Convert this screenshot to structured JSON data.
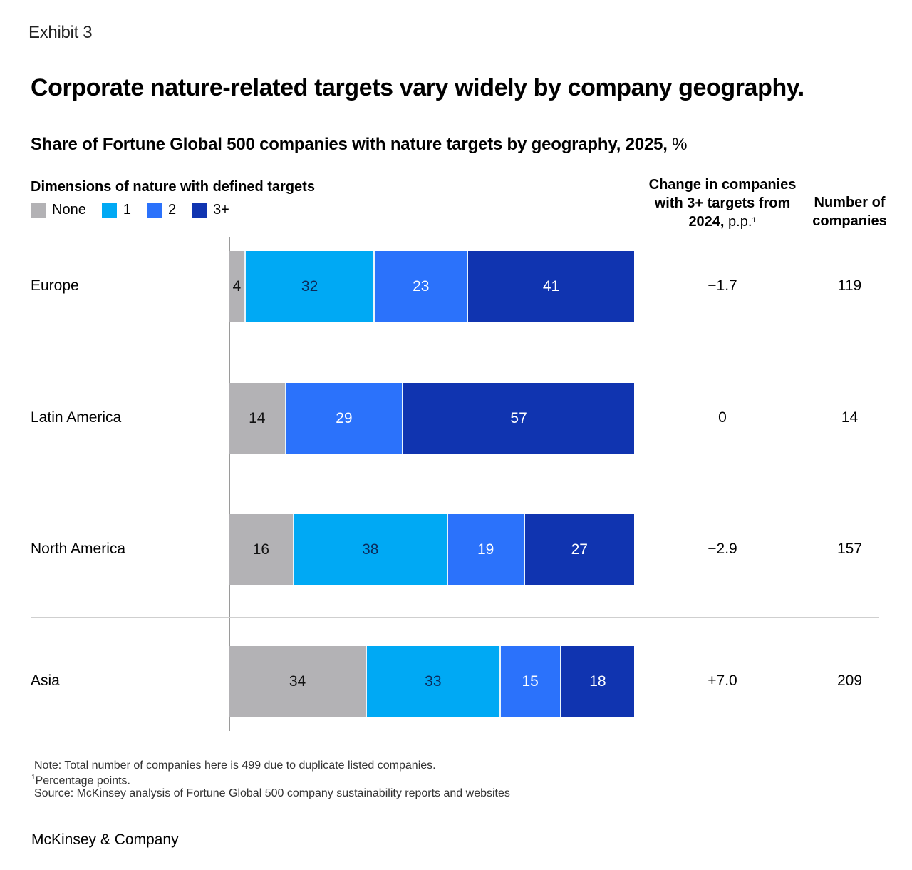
{
  "header": {
    "exhibit": "Exhibit 3",
    "title": "Corporate nature-related targets vary widely by company geography.",
    "subtitle_bold": "Share of Fortune Global 500 companies with nature targets by geography, 2025,",
    "subtitle_unit": " %"
  },
  "legend": {
    "title": "Dimensions of nature with defined targets",
    "items": [
      {
        "label": "None",
        "color": "#b3b2b5"
      },
      {
        "label": "1",
        "color": "#00a9f4"
      },
      {
        "label": "2",
        "color": "#2b72fb"
      },
      {
        "label": "3+",
        "color": "#1034b0"
      }
    ]
  },
  "columns": {
    "change_line1": "Change in companies",
    "change_line2": "with 3+ targets from",
    "change_line3_bold": "2024,",
    "change_line3_light": " p.p.",
    "change_sup": "1",
    "count_line1": "Number of",
    "count_line2": "companies"
  },
  "chart_data": {
    "type": "bar",
    "orientation": "horizontal-stacked-100",
    "title": "Share of Fortune Global 500 companies with nature targets by geography, 2025, %",
    "legend_title": "Dimensions of nature with defined targets",
    "legend_position": "top-left",
    "categories": [
      "Europe",
      "Latin America",
      "North America",
      "Asia"
    ],
    "series": [
      {
        "name": "None",
        "color": "#b3b2b5",
        "text_color": "#111111",
        "values": [
          4,
          14,
          16,
          34
        ]
      },
      {
        "name": "1",
        "color": "#00a9f4",
        "text_color": "#0b2a5a",
        "values": [
          32,
          0,
          38,
          33
        ]
      },
      {
        "name": "2",
        "color": "#2b72fb",
        "text_color": "#ffffff",
        "values": [
          23,
          29,
          19,
          15
        ]
      },
      {
        "name": "3+",
        "color": "#1034b0",
        "text_color": "#ffffff",
        "values": [
          41,
          57,
          27,
          18
        ]
      }
    ],
    "xlim": [
      0,
      100
    ],
    "grid": false,
    "side_columns": {
      "change_3plus_pp": [
        "−1.7",
        "0",
        "−2.9",
        "+7.0"
      ],
      "number_of_companies": [
        "119",
        "14",
        "157",
        "209"
      ]
    }
  },
  "rows": [
    {
      "region": "Europe",
      "change": "−1.7",
      "count": "119"
    },
    {
      "region": "Latin America",
      "change": "0",
      "count": "14"
    },
    {
      "region": "North America",
      "change": "−2.9",
      "count": "157"
    },
    {
      "region": "Asia",
      "change": "+7.0",
      "count": "209"
    }
  ],
  "notes": {
    "note": "Note: Total number of companies here is 499 due to duplicate listed companies.",
    "footnote_sup": "1",
    "footnote": "Percentage points.",
    "source": "Source: McKinsey analysis of Fortune Global 500 company sustainability reports and websites"
  },
  "brand": "McKinsey & Company"
}
